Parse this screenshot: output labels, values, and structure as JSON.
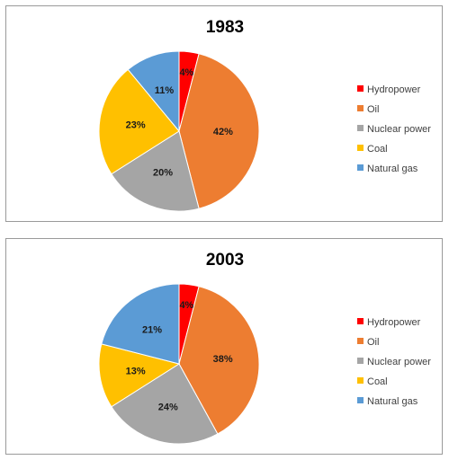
{
  "chart_data": [
    {
      "type": "pie",
      "title": "1983",
      "categories": [
        "Hydropower",
        "Oil",
        "Nuclear power",
        "Coal",
        "Natural gas"
      ],
      "values": [
        4,
        42,
        20,
        23,
        11
      ],
      "data_labels": [
        "4%",
        "42%",
        "20%",
        "23%",
        "11%"
      ],
      "colors": [
        "#ff0000",
        "#ed7d31",
        "#a5a5a5",
        "#ffc000",
        "#5b9bd5"
      ],
      "legend_position": "right"
    },
    {
      "type": "pie",
      "title": "2003",
      "categories": [
        "Hydropower",
        "Oil",
        "Nuclear power",
        "Coal",
        "Natural gas"
      ],
      "values": [
        4,
        38,
        24,
        13,
        21
      ],
      "data_labels": [
        "4%",
        "38%",
        "24%",
        "13%",
        "21%"
      ],
      "colors": [
        "#ff0000",
        "#ed7d31",
        "#a5a5a5",
        "#ffc000",
        "#5b9bd5"
      ],
      "legend_position": "right"
    }
  ]
}
